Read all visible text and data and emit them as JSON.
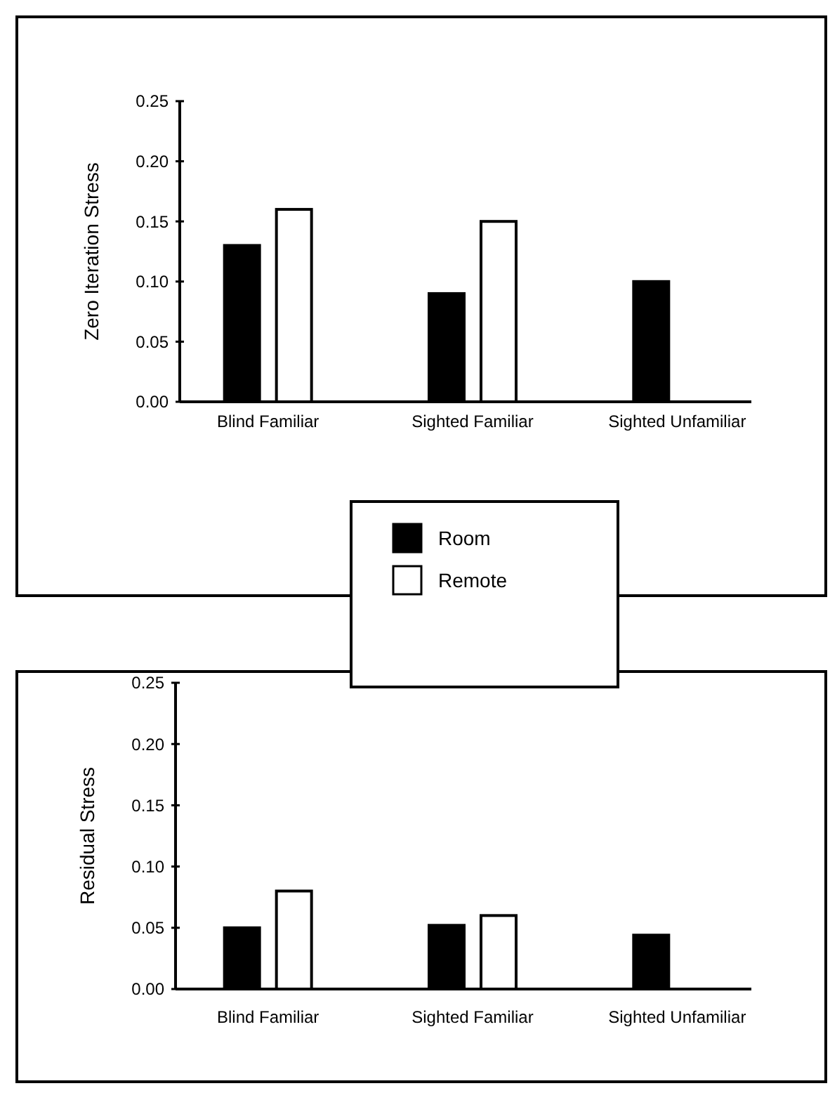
{
  "chart_data": [
    {
      "type": "bar",
      "ylabel": "Zero Iteration Stress",
      "categories": [
        "Blind Familiar",
        "Sighted Familiar",
        "Sighted Unfamiliar"
      ],
      "ylim": [
        0,
        0.25
      ],
      "yticks": [
        {
          "value": 0,
          "label": "0.00"
        },
        {
          "value": 0.05,
          "label": "0.05"
        },
        {
          "value": 0.1,
          "label": "0.10"
        },
        {
          "value": 0.15,
          "label": "0.15"
        },
        {
          "value": 0.2,
          "label": "0.20"
        },
        {
          "value": 0.25,
          "label": "0.25"
        }
      ],
      "legend": "bottom",
      "series": [
        {
          "name": "Room",
          "color": "#000000",
          "values": [
            0.13,
            0.09,
            0.1
          ]
        },
        {
          "name": "Remote",
          "color": "#ffffff",
          "values": [
            0.16,
            0.15,
            null
          ]
        }
      ]
    },
    {
      "type": "bar",
      "ylabel": "Residual Stress",
      "categories": [
        "Blind Familiar",
        "Sighted Familiar",
        "Sighted Unfamiliar"
      ],
      "ylim": [
        0,
        0.25
      ],
      "yticks": [
        {
          "value": 0,
          "label": "0.00"
        },
        {
          "value": 0.05,
          "label": "0.05"
        },
        {
          "value": 0.1,
          "label": "0.10"
        },
        {
          "value": 0.15,
          "label": "0.15"
        },
        {
          "value": 0.2,
          "label": "0.20"
        },
        {
          "value": 0.25,
          "label": "0.25"
        }
      ],
      "series": [
        {
          "color": "#000000",
          "values": [
            0.05,
            0.052,
            0.044
          ]
        },
        {
          "color": "#ffffff",
          "values": [
            0.08,
            0.06,
            null
          ]
        }
      ]
    }
  ]
}
